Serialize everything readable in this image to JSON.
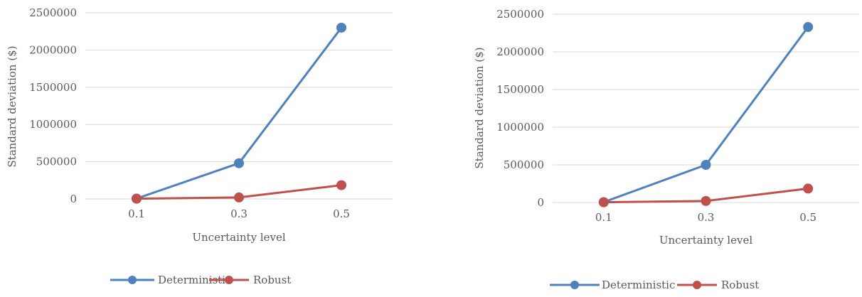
{
  "chart_data": [
    {
      "type": "line",
      "title": "",
      "xlabel": "Uncertainty level",
      "ylabel": "Standard deviation ($)",
      "categories": [
        "0.1",
        "0.3",
        "0.5"
      ],
      "ylim": [
        0,
        2500000
      ],
      "yticks": [
        "0",
        "500000",
        "1000000",
        "1500000",
        "2000000",
        "2500000"
      ],
      "grid": true,
      "legend_position": "bottom",
      "series": [
        {
          "name": "Deterministic",
          "color": "#4F81BD",
          "values": [
            5000,
            480000,
            2300000
          ]
        },
        {
          "name": "Robust",
          "color": "#C0504D",
          "values": [
            3000,
            20000,
            185000
          ]
        }
      ]
    },
    {
      "type": "line",
      "title": "",
      "xlabel": "Uncertainty level",
      "ylabel": "Standard deviation ($)",
      "categories": [
        "0.1",
        "0.3",
        "0.5"
      ],
      "ylim": [
        0,
        2500000
      ],
      "yticks": [
        "0",
        "500000",
        "1000000",
        "1500000",
        "2000000",
        "2500000"
      ],
      "grid": true,
      "legend_position": "bottom",
      "series": [
        {
          "name": "Deterministic",
          "color": "#4F81BD",
          "values": [
            5000,
            500000,
            2330000
          ]
        },
        {
          "name": "Robust",
          "color": "#C0504D",
          "values": [
            3000,
            20000,
            185000
          ]
        }
      ]
    }
  ]
}
